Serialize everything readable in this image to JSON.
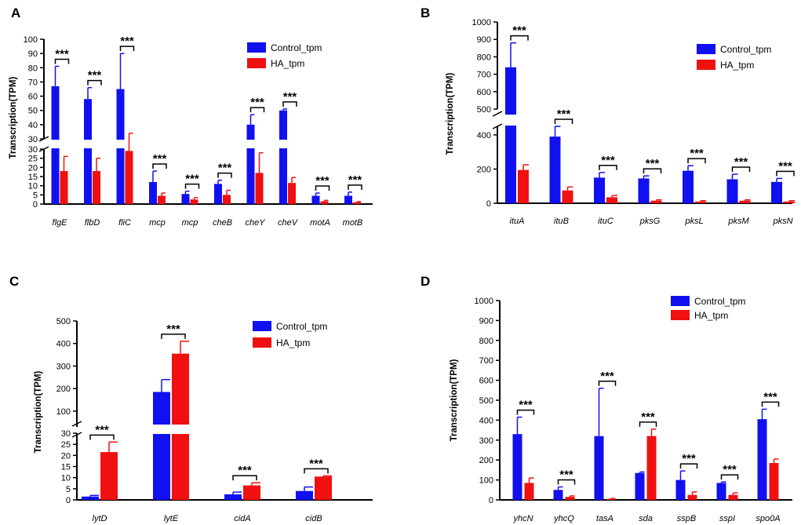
{
  "colors": {
    "control": "#1010f0",
    "ha": "#f01010",
    "axis": "#000000"
  },
  "chart_data": [
    {
      "panel": "A",
      "type": "bar",
      "ylabel": "Transcription(TPM)",
      "series_names": [
        "Control_tpm",
        "HA_tpm"
      ],
      "categories": [
        "flgE",
        "flbD",
        "fliC",
        "mcp",
        "mcp",
        "cheB",
        "cheY",
        "cheV",
        "motA",
        "motB"
      ],
      "series": [
        {
          "name": "Control_tpm",
          "values": [
            67,
            58,
            65,
            12,
            5.5,
            11,
            40,
            50,
            4.5,
            4.5
          ],
          "errors": [
            14,
            8,
            25,
            6,
            1.5,
            2,
            7,
            1,
            1.5,
            2
          ]
        },
        {
          "name": "HA_tpm",
          "values": [
            18,
            18,
            29,
            4.5,
            2.5,
            5,
            17,
            11.5,
            1.5,
            1
          ],
          "errors": [
            8,
            7,
            5,
            1.5,
            1,
            2.5,
            11,
            3,
            0.5,
            0.3
          ]
        }
      ],
      "significance": [
        "***",
        "***",
        "***",
        "***",
        "***",
        "***",
        "***",
        "***",
        "***",
        "***"
      ],
      "yaxis_lower": {
        "range": [
          0,
          30
        ],
        "ticks": [
          0,
          5,
          10,
          15,
          20,
          25,
          30
        ]
      },
      "yaxis_upper": {
        "range": [
          30,
          100
        ],
        "ticks": [
          30,
          40,
          50,
          60,
          70,
          80,
          90,
          100
        ]
      },
      "legend": "top-right"
    },
    {
      "panel": "B",
      "type": "bar",
      "ylabel": "Transcription(TPM)",
      "series_names": [
        "Control_tpm",
        "HA_tpm"
      ],
      "categories": [
        "ituA",
        "ituB",
        "ituC",
        "pksG",
        "pksL",
        "pksM",
        "pksN"
      ],
      "series": [
        {
          "name": "Control_tpm",
          "values": [
            740,
            390,
            150,
            145,
            190,
            140,
            125
          ],
          "errors": [
            140,
            70,
            30,
            15,
            30,
            30,
            20
          ]
        },
        {
          "name": "HA_tpm",
          "values": [
            195,
            75,
            35,
            15,
            10,
            15,
            10
          ],
          "errors": [
            30,
            20,
            10,
            5,
            5,
            5,
            5
          ]
        }
      ],
      "significance": [
        "***",
        "***",
        "***",
        "***",
        "***",
        "***",
        "***"
      ],
      "yaxis_lower": {
        "range": [
          0,
          450
        ],
        "ticks": [
          0,
          200,
          400
        ]
      },
      "yaxis_upper": {
        "range": [
          500,
          1000
        ],
        "ticks": [
          500,
          600,
          700,
          800,
          900,
          1000
        ]
      },
      "legend": "top-right"
    },
    {
      "panel": "C",
      "type": "bar",
      "ylabel": "Transcription(TPM)",
      "series_names": [
        "Control_tpm",
        "HA_tpm"
      ],
      "categories": [
        "lytD",
        "lytE",
        "cidA",
        "cidB"
      ],
      "series": [
        {
          "name": "Control_tpm",
          "values": [
            1.5,
            185,
            2.5,
            4
          ],
          "errors": [
            0.5,
            55,
            1,
            1.8
          ]
        },
        {
          "name": "HA_tpm",
          "values": [
            21.5,
            355,
            6.5,
            10.5
          ],
          "errors": [
            4.5,
            55,
            1.2,
            0.3
          ]
        }
      ],
      "significance": [
        "***",
        "***",
        "***",
        "***"
      ],
      "yaxis_lower": {
        "range": [
          0,
          30
        ],
        "ticks": [
          0,
          5,
          10,
          15,
          20,
          25,
          30
        ]
      },
      "yaxis_upper": {
        "range": [
          30,
          500
        ],
        "ticks": [
          100,
          200,
          300,
          400,
          500
        ]
      },
      "legend": "top-right"
    },
    {
      "panel": "D",
      "type": "bar",
      "ylabel": "Transcription(TPM)",
      "series_names": [
        "Control_tpm",
        "HA_tpm"
      ],
      "categories": [
        "yhcN",
        "yhcQ",
        "tasA",
        "sda",
        "sspB",
        "sspI",
        "spo0A"
      ],
      "series": [
        {
          "name": "Control_tpm",
          "values": [
            330,
            50,
            320,
            135,
            100,
            85,
            405
          ],
          "errors": [
            85,
            15,
            240,
            5,
            45,
            5,
            50
          ]
        },
        {
          "name": "HA_tpm",
          "values": [
            85,
            15,
            5,
            320,
            25,
            25,
            185
          ],
          "errors": [
            25,
            5,
            2,
            35,
            15,
            10,
            20
          ]
        }
      ],
      "significance": [
        "***",
        "***",
        "***",
        "***",
        "***",
        "***",
        "***"
      ],
      "yaxis": {
        "range": [
          0,
          1000
        ],
        "ticks": [
          0,
          100,
          200,
          300,
          400,
          500,
          600,
          700,
          800,
          900,
          1000
        ]
      },
      "legend": "top-right"
    }
  ]
}
